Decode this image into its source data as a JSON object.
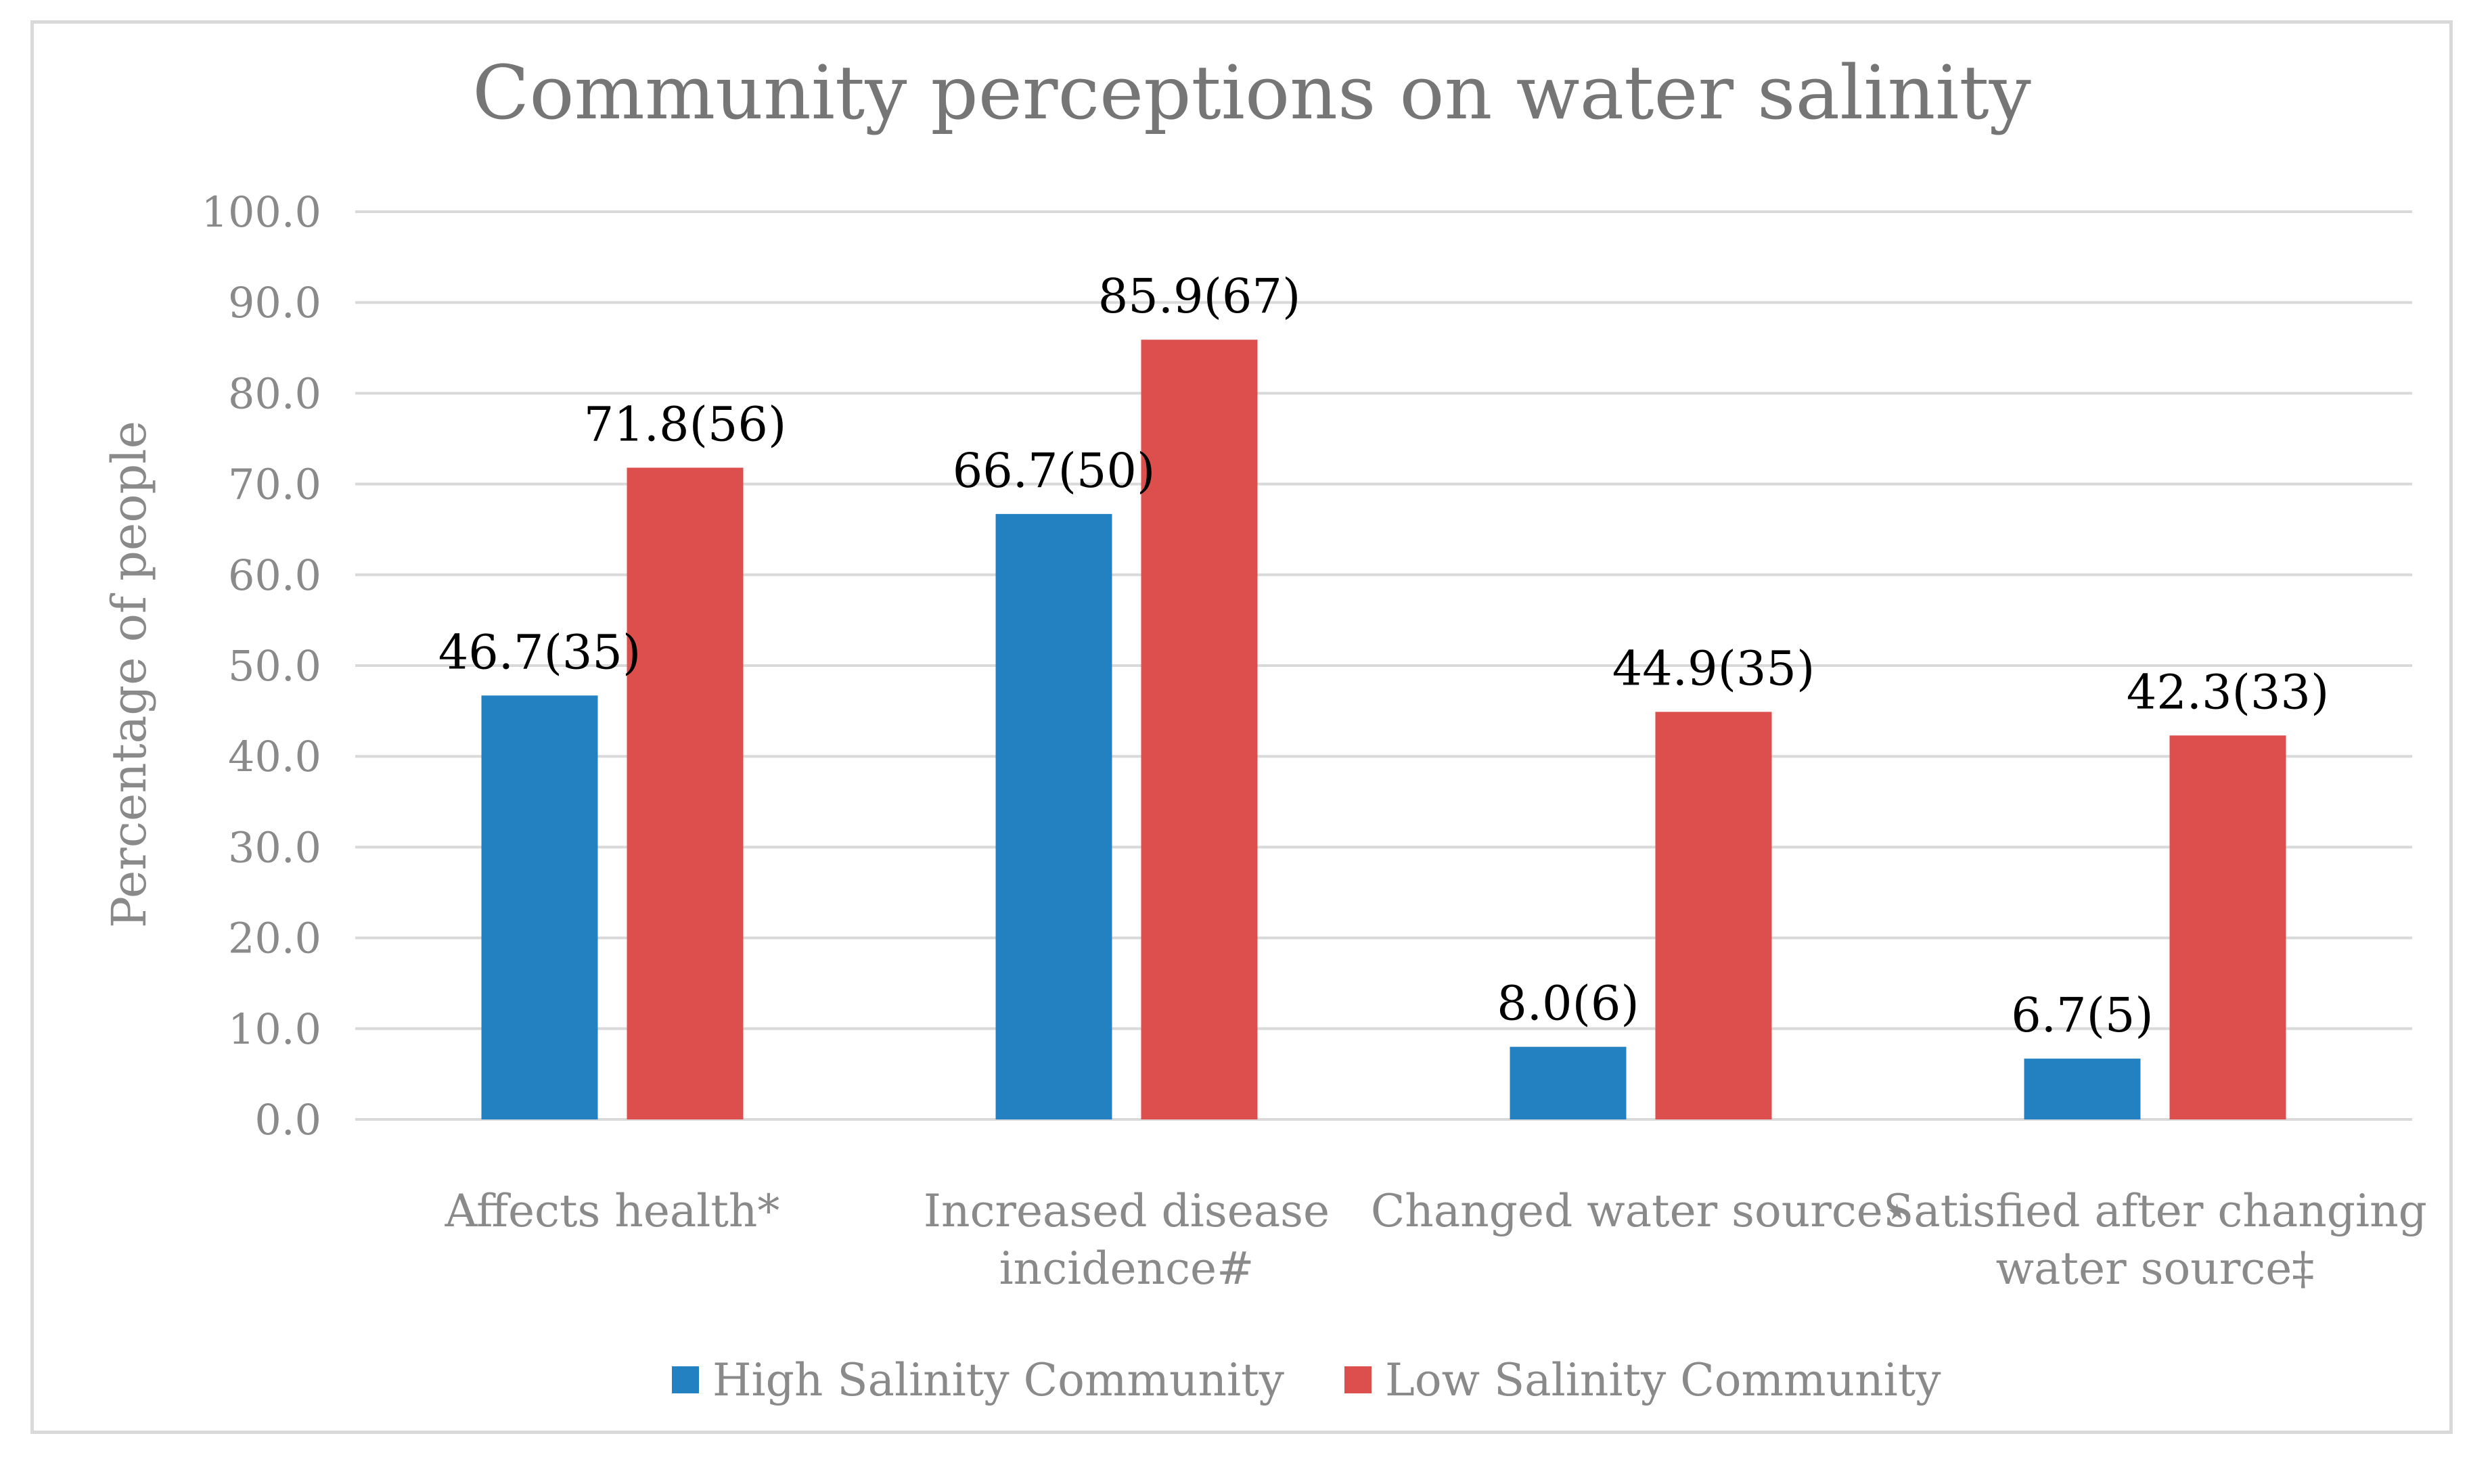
{
  "chart_data": {
    "type": "bar",
    "title": "Community perceptions on water salinity",
    "xlabel": "",
    "ylabel": "Percentage of people",
    "ylim": [
      0,
      100
    ],
    "ytick_step": 10,
    "ytick_labels": [
      "0.0",
      "10.0",
      "20.0",
      "30.0",
      "40.0",
      "50.0",
      "60.0",
      "70.0",
      "80.0",
      "90.0",
      "100.0"
    ],
    "grid": true,
    "legend_position": "bottom-center",
    "categories": [
      [
        "Affects health*"
      ],
      [
        "Increased disease",
        "incidence#"
      ],
      [
        "Changed water source⋆"
      ],
      [
        "Satisfied after changing",
        "water source‡"
      ]
    ],
    "series": [
      {
        "name": "High Salinity Community",
        "color": "#2381c2",
        "values": [
          46.7,
          66.7,
          8.0,
          6.7
        ],
        "labels": [
          "46.7(35)",
          "66.7(50)",
          "8.0(6)",
          "6.7(5)"
        ]
      },
      {
        "name": "Low Salinity Community",
        "color": "#dc4f4d",
        "values": [
          71.8,
          85.9,
          44.9,
          42.3
        ],
        "labels": [
          "71.8(56)",
          "85.9(67)",
          "44.9(35)",
          "42.3(33)"
        ]
      }
    ],
    "colors": {
      "title": "#767676",
      "axis_text": "#8a8a8a",
      "gridline": "#d9d9d9",
      "data_label": "#000000"
    }
  }
}
